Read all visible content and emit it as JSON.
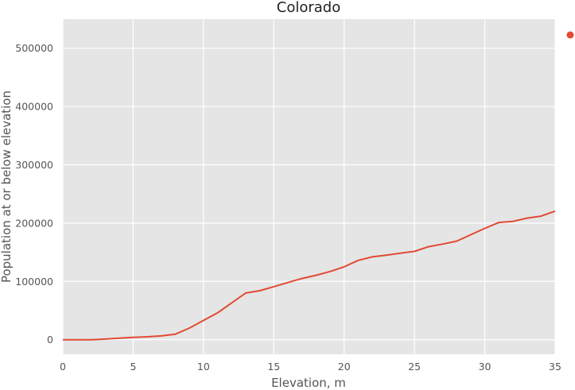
{
  "chart_data": {
    "type": "line",
    "title": "Colorado",
    "xlabel": "Elevation, m",
    "ylabel": "Population at or below elevation",
    "xlim": [
      0,
      35
    ],
    "ylim": [
      -25000,
      550000
    ],
    "xticks": [
      0,
      5,
      10,
      15,
      20,
      25,
      30,
      35
    ],
    "yticks": [
      0,
      100000,
      200000,
      300000,
      400000,
      500000
    ],
    "grid": true,
    "legend_position": "top-right outside",
    "background": "#e5e5e5",
    "series": [
      {
        "color": "#e24a33",
        "x": [
          0,
          1,
          2,
          3,
          4,
          5,
          6,
          7,
          8,
          9,
          10,
          11,
          12,
          13,
          14,
          15,
          16,
          17,
          18,
          19,
          20,
          21,
          22,
          23,
          24,
          25,
          26,
          27,
          28,
          29,
          30,
          31,
          32,
          33,
          34,
          35
        ],
        "y": [
          0,
          0,
          0,
          1000,
          2500,
          4000,
          5000,
          6500,
          9500,
          20000,
          33000,
          46000,
          63000,
          80000,
          84000,
          91000,
          98000,
          105000,
          110500,
          117000,
          125000,
          136000,
          142000,
          145000,
          148500,
          151500,
          159500,
          164000,
          169000,
          180000,
          191000,
          201000,
          203000,
          208500,
          212000,
          220500
        ]
      }
    ]
  }
}
